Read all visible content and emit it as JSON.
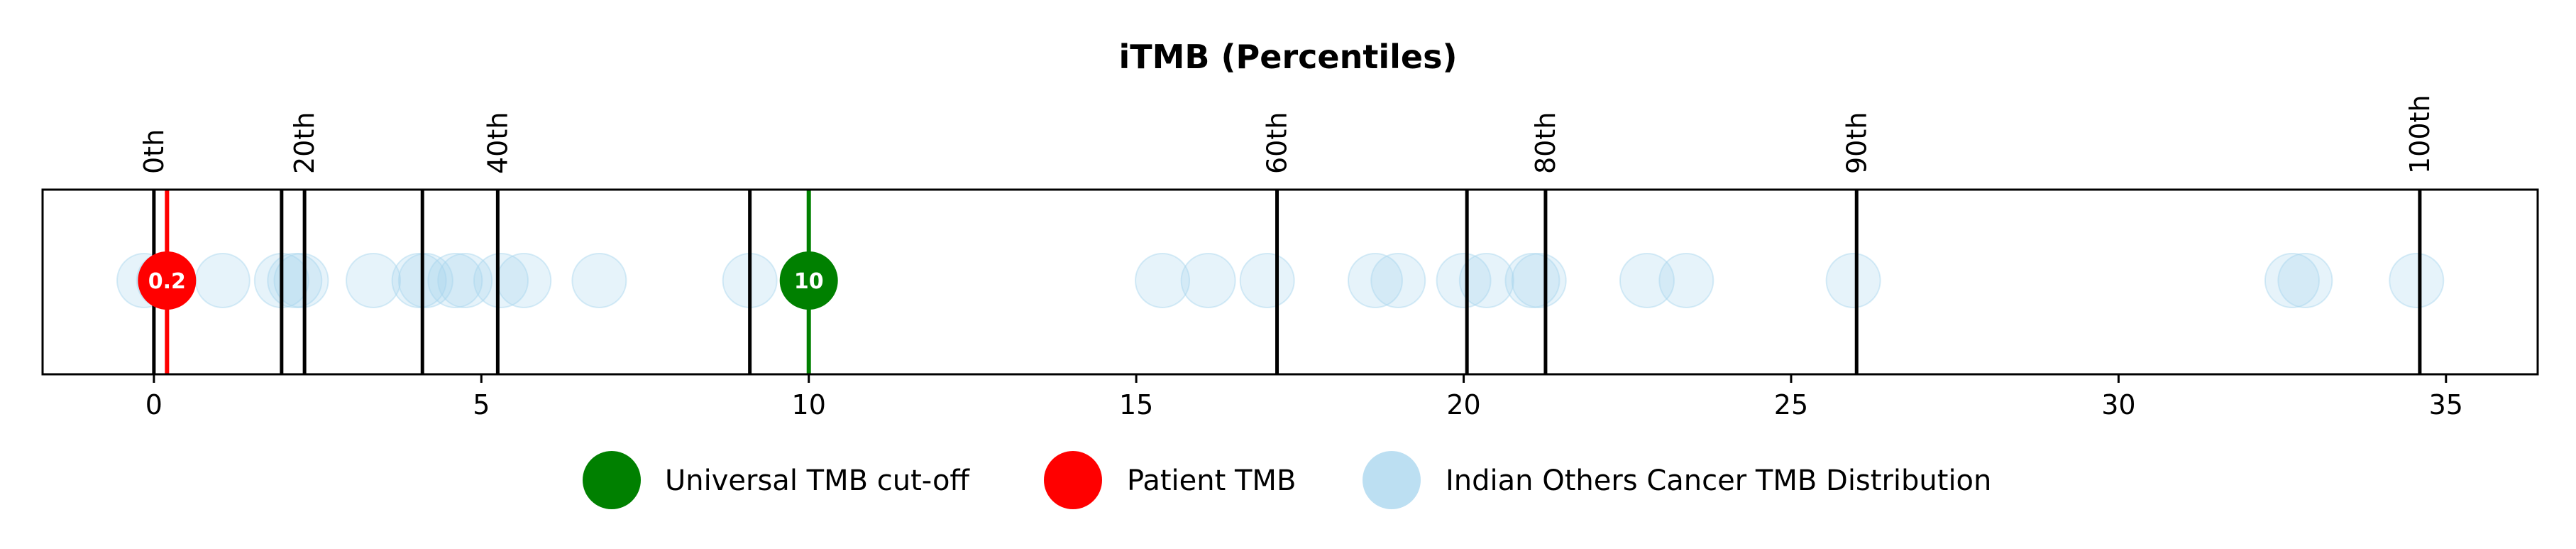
{
  "chart_data": {
    "type": "scatter",
    "title": "iTMB (Percentiles)",
    "xlabel": "",
    "ylabel": "",
    "xlim": [
      -1.7,
      36.4
    ],
    "x_ticks": [
      0,
      5,
      10,
      15,
      20,
      25,
      30,
      35
    ],
    "grid": false,
    "legend_position": "bottom-center",
    "percentile_lines": [
      {
        "label": "0th",
        "x": 0.0
      },
      {
        "label": "",
        "x": 1.95
      },
      {
        "label": "20th",
        "x": 2.3
      },
      {
        "label": "",
        "x": 4.1
      },
      {
        "label": "40th",
        "x": 5.25
      },
      {
        "label": "",
        "x": 9.1
      },
      {
        "label": "60th",
        "x": 17.15
      },
      {
        "label": "",
        "x": 20.05
      },
      {
        "label": "80th",
        "x": 21.25
      },
      {
        "label": "90th",
        "x": 26.0
      },
      {
        "label": "100th",
        "x": 34.6
      }
    ],
    "series": [
      {
        "name": "Universal TMB cut-off",
        "color": "#008000",
        "values": [
          10
        ],
        "point_label": "10"
      },
      {
        "name": "Patient TMB",
        "color": "#ff0000",
        "values": [
          0.2
        ],
        "point_label": "0.2"
      },
      {
        "name": "Indian Others Cancer TMB Distribution",
        "color": "#a6d4ee",
        "values": [
          -0.15,
          0.15,
          1.05,
          1.95,
          2.15,
          2.25,
          3.35,
          4.05,
          4.15,
          4.6,
          4.75,
          5.3,
          5.65,
          6.8,
          9.1,
          15.4,
          16.1,
          17.0,
          18.65,
          19.0,
          20.0,
          20.35,
          21.05,
          21.15,
          22.8,
          23.4,
          25.95,
          32.65,
          32.85,
          34.55
        ]
      }
    ]
  }
}
